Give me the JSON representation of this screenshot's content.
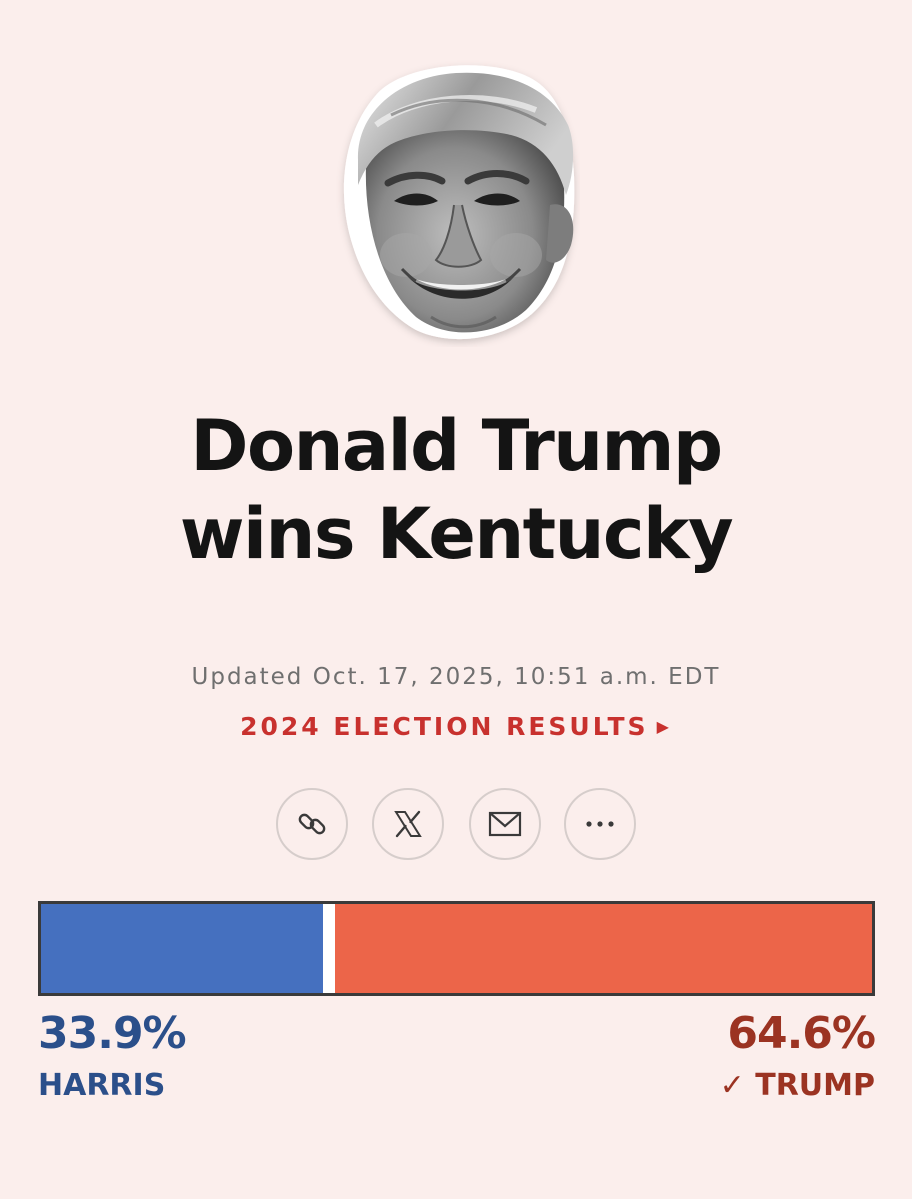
{
  "headline": {
    "line1": "Donald Trump",
    "line2": "wins Kentucky"
  },
  "updated_text": "Updated Oct. 17, 2025, 10:51 a.m. EDT",
  "results_link": {
    "label": "2024 ELECTION RESULTS",
    "arrow_icon": "caret-right-icon"
  },
  "share_buttons": [
    {
      "icon": "link-icon"
    },
    {
      "icon": "x-logo-icon"
    },
    {
      "icon": "mail-icon"
    },
    {
      "icon": "more-icon"
    }
  ],
  "portrait": {
    "icon": "candidate-portrait"
  },
  "results": {
    "harris": {
      "name": "HARRIS",
      "percent": "33.9%",
      "share": 33.9,
      "color": "#4570bf",
      "text_color": "#2b4f8a"
    },
    "trump": {
      "name": "TRUMP",
      "percent": "64.6%",
      "share": 64.6,
      "winner_check": "✓",
      "color": "#ec6549",
      "text_color": "#9b3322"
    }
  }
}
